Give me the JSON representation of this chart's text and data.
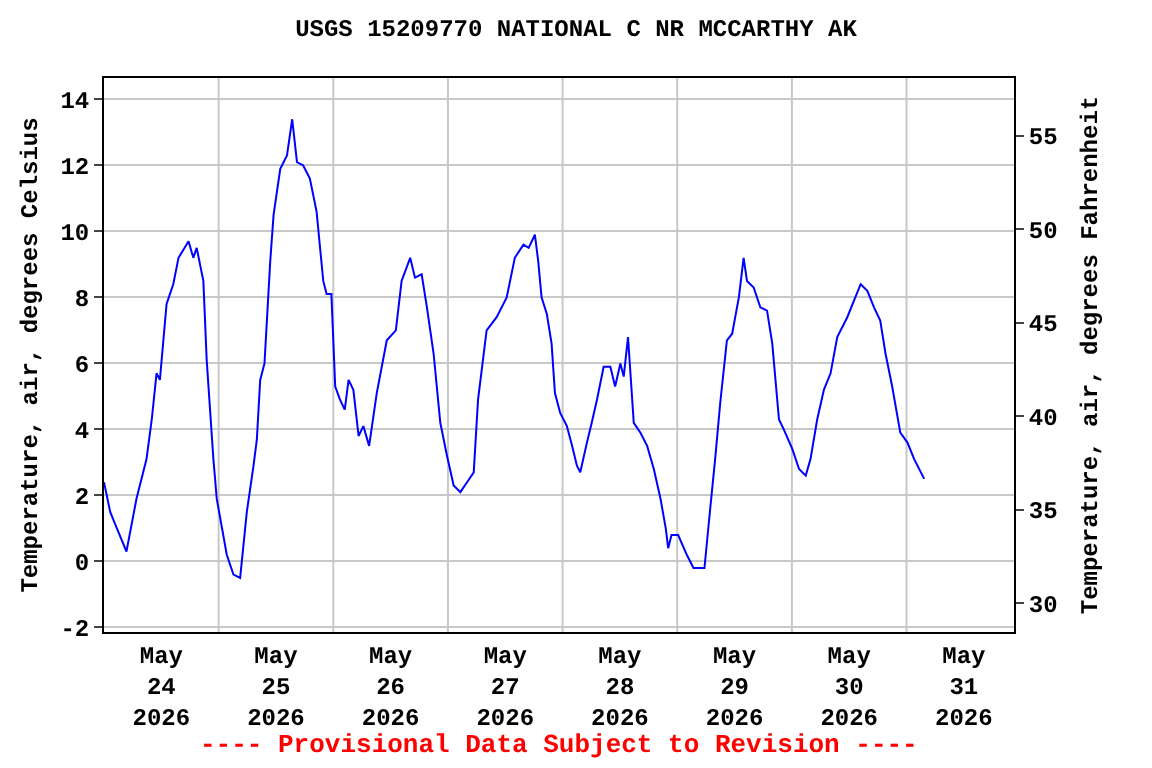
{
  "chart_data": {
    "type": "line",
    "title": "USGS 15209770 NATIONAL C NR MCCARTHY AK",
    "ylabel": "Temperature, air, degrees Celsius",
    "y2label": "Temperature, air, degrees Fahrenheit",
    "annotations": [
      "---- Provisional Data Subject to Revision ----"
    ],
    "x": [
      "2026-05-24T00:00",
      "2026-05-24T01:18",
      "2026-05-24T02:42",
      "2026-05-24T04:42",
      "2026-05-24T06:48",
      "2026-05-24T08:54",
      "2026-05-24T10:00",
      "2026-05-24T11:00",
      "2026-05-24T11:42",
      "2026-05-24T13:06",
      "2026-05-24T14:30",
      "2026-05-24T15:36",
      "2026-05-24T17:42",
      "2026-05-24T18:42",
      "2026-05-24T19:24",
      "2026-05-24T20:48",
      "2026-05-24T21:30",
      "2026-05-24T22:54",
      "2026-05-24T23:36",
      "2026-05-25T01:42",
      "2026-05-25T03:06",
      "2026-05-25T04:30",
      "2026-05-25T05:54",
      "2026-05-25T07:18",
      "2026-05-25T08:00",
      "2026-05-25T08:42",
      "2026-05-25T09:36",
      "2026-05-25T10:48",
      "2026-05-25T11:30",
      "2026-05-25T12:54",
      "2026-05-25T14:18",
      "2026-05-25T15:24",
      "2026-05-25T16:24",
      "2026-05-25T17:42",
      "2026-05-25T19:06",
      "2026-05-25T20:30",
      "2026-05-25T21:54",
      "2026-05-25T22:36",
      "2026-05-25T23:36",
      "2026-05-26T00:24",
      "2026-05-26T01:24",
      "2026-05-26T02:24",
      "2026-05-26T03:12",
      "2026-05-26T04:12",
      "2026-05-26T05:18",
      "2026-05-26T06:18",
      "2026-05-26T07:30",
      "2026-05-26T09:06",
      "2026-05-26T11:12",
      "2026-05-26T13:06",
      "2026-05-26T14:18",
      "2026-05-26T16:06",
      "2026-05-26T17:06",
      "2026-05-26T18:30",
      "2026-05-26T19:36",
      "2026-05-26T21:00",
      "2026-05-26T22:24",
      "2026-05-26T23:48",
      "2026-05-27T01:12",
      "2026-05-27T02:36",
      "2026-05-27T04:00",
      "2026-05-27T05:24",
      "2026-05-27T06:18",
      "2026-05-27T08:06",
      "2026-05-27T10:12",
      "2026-05-27T12:18",
      "2026-05-27T14:00",
      "2026-05-27T15:48",
      "2026-05-27T16:54",
      "2026-05-27T18:12",
      "2026-05-27T18:54",
      "2026-05-27T19:36",
      "2026-05-27T20:42",
      "2026-05-27T21:42",
      "2026-05-27T22:24",
      "2026-05-27T23:30",
      "2026-05-28T00:54",
      "2026-05-28T02:00",
      "2026-05-28T03:00",
      "2026-05-28T03:42",
      "2026-05-28T05:06",
      "2026-05-28T06:06",
      "2026-05-28T07:12",
      "2026-05-28T08:36",
      "2026-05-28T10:00",
      "2026-05-28T11:00",
      "2026-05-28T12:06",
      "2026-05-28T12:48",
      "2026-05-28T13:42",
      "2026-05-28T14:54",
      "2026-05-28T16:18",
      "2026-05-28T17:42",
      "2026-05-28T19:06",
      "2026-05-28T20:30",
      "2026-05-28T21:36",
      "2026-05-28T22:06",
      "2026-05-28T22:48",
      "2026-05-29T00:12",
      "2026-05-29T02:00",
      "2026-05-29T03:24",
      "2026-05-29T05:42",
      "2026-05-29T06:42",
      "2026-05-29T08:00",
      "2026-05-29T09:00",
      "2026-05-29T10:24",
      "2026-05-29T11:30",
      "2026-05-29T12:54",
      "2026-05-29T13:54",
      "2026-05-29T14:36",
      "2026-05-29T16:00",
      "2026-05-29T17:24",
      "2026-05-29T18:48",
      "2026-05-29T19:54",
      "2026-05-29T21:18",
      "2026-05-29T22:18",
      "2026-05-30T00:06",
      "2026-05-30T01:30",
      "2026-05-30T02:54",
      "2026-05-30T03:54",
      "2026-05-30T05:18",
      "2026-05-30T06:42",
      "2026-05-30T08:06",
      "2026-05-30T09:30",
      "2026-05-30T11:36",
      "2026-05-30T13:00",
      "2026-05-30T14:24",
      "2026-05-30T15:48",
      "2026-05-30T17:12",
      "2026-05-30T18:30",
      "2026-05-30T19:36",
      "2026-05-30T21:00",
      "2026-05-30T22:42",
      "2026-05-31T00:12",
      "2026-05-31T01:36",
      "2026-05-31T03:42"
    ],
    "series": [
      {
        "color": "#0000ff",
        "values": [
          2.4,
          1.5,
          1.0,
          0.3,
          1.9,
          3.1,
          4.3,
          5.7,
          5.5,
          7.8,
          8.4,
          9.2,
          9.7,
          9.2,
          9.5,
          8.5,
          6.1,
          3.1,
          1.9,
          0.2,
          -0.4,
          -0.5,
          1.5,
          2.9,
          3.7,
          5.5,
          6.0,
          9.1,
          10.5,
          11.9,
          12.3,
          13.4,
          12.1,
          12.0,
          11.6,
          10.6,
          8.5,
          8.1,
          8.1,
          5.3,
          4.9,
          4.6,
          5.5,
          5.2,
          3.8,
          4.1,
          3.5,
          5.1,
          6.7,
          7.0,
          8.5,
          9.2,
          8.6,
          8.7,
          7.7,
          6.3,
          4.2,
          3.2,
          2.3,
          2.1,
          2.4,
          2.7,
          4.9,
          7.0,
          7.4,
          8.0,
          9.2,
          9.6,
          9.5,
          9.9,
          9.1,
          8.0,
          7.5,
          6.6,
          5.1,
          4.5,
          4.1,
          3.5,
          2.9,
          2.7,
          3.6,
          4.2,
          4.9,
          5.9,
          5.9,
          5.3,
          6.0,
          5.6,
          6.8,
          4.2,
          3.9,
          3.5,
          2.8,
          1.9,
          1.0,
          0.4,
          0.8,
          0.8,
          0.2,
          -0.2,
          -0.2,
          1.3,
          3.2,
          4.8,
          6.7,
          6.9,
          8.0,
          9.2,
          8.5,
          8.3,
          7.7,
          7.6,
          6.6,
          4.3,
          4.0,
          3.4,
          2.8,
          2.6,
          3.1,
          4.3,
          5.2,
          5.7,
          6.8,
          7.4,
          7.9,
          8.4,
          8.2,
          7.7,
          7.3,
          6.3,
          5.3,
          3.9,
          3.6,
          3.1,
          2.5
        ]
      }
    ],
    "xlim": [
      "2026-05-24T00:00",
      "2026-05-31T22:30"
    ],
    "xticks": [
      {
        "value": "2026-05-24T12:00",
        "label": "May\n24\n2026"
      },
      {
        "value": "2026-05-25T00:00",
        "label": null
      },
      {
        "value": "2026-05-25T12:00",
        "label": "May\n25\n2026"
      },
      {
        "value": "2026-05-26T00:00",
        "label": null
      },
      {
        "value": "2026-05-26T12:00",
        "label": "May\n26\n2026"
      },
      {
        "value": "2026-05-27T00:00",
        "label": null
      },
      {
        "value": "2026-05-27T12:00",
        "label": "May\n27\n2026"
      },
      {
        "value": "2026-05-28T00:00",
        "label": null
      },
      {
        "value": "2026-05-28T12:00",
        "label": "May\n28\n2026"
      },
      {
        "value": "2026-05-29T00:00",
        "label": null
      },
      {
        "value": "2026-05-29T12:00",
        "label": "May\n29\n2026"
      },
      {
        "value": "2026-05-30T00:00",
        "label": null
      },
      {
        "value": "2026-05-30T12:00",
        "label": "May\n30\n2026"
      },
      {
        "value": "2026-05-31T00:00",
        "label": null
      },
      {
        "value": "2026-05-31T12:00",
        "label": "May\n31\n2026"
      }
    ],
    "ylim": [
      -2.14,
      14.65
    ],
    "yticks": [
      -2,
      0,
      2,
      4,
      6,
      8,
      10,
      12,
      14
    ],
    "y2lim": [
      28.47,
      58.1
    ],
    "y2ticks": [
      30,
      35,
      40,
      45,
      50,
      55
    ],
    "grid": true,
    "marker": "none",
    "line_style": "solid"
  }
}
